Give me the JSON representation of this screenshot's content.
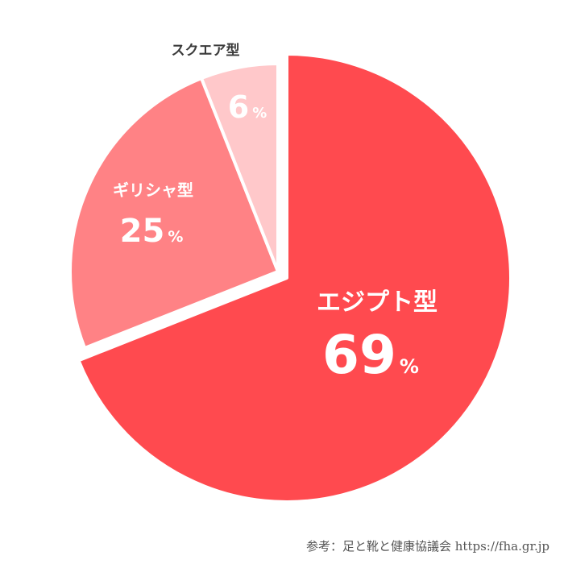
{
  "chart_data": {
    "type": "pie",
    "categories": [
      "エジプト型",
      "ギリシャ型",
      "スクエア型"
    ],
    "values": [
      69,
      25,
      6
    ],
    "unit": "%",
    "colors": [
      "#ff4a4f",
      "#ff8285",
      "#ffc8ca"
    ],
    "label_colors": [
      "#ffffff",
      "#ffffff",
      "#ffffff"
    ],
    "outer_label_color": "#3a3a3a",
    "start": "12 o'clock",
    "direction": "clockwise",
    "exploded_slice": "エジプト型"
  },
  "source": "参考：足と靴と健康協議会 https://fha.gr.jp"
}
